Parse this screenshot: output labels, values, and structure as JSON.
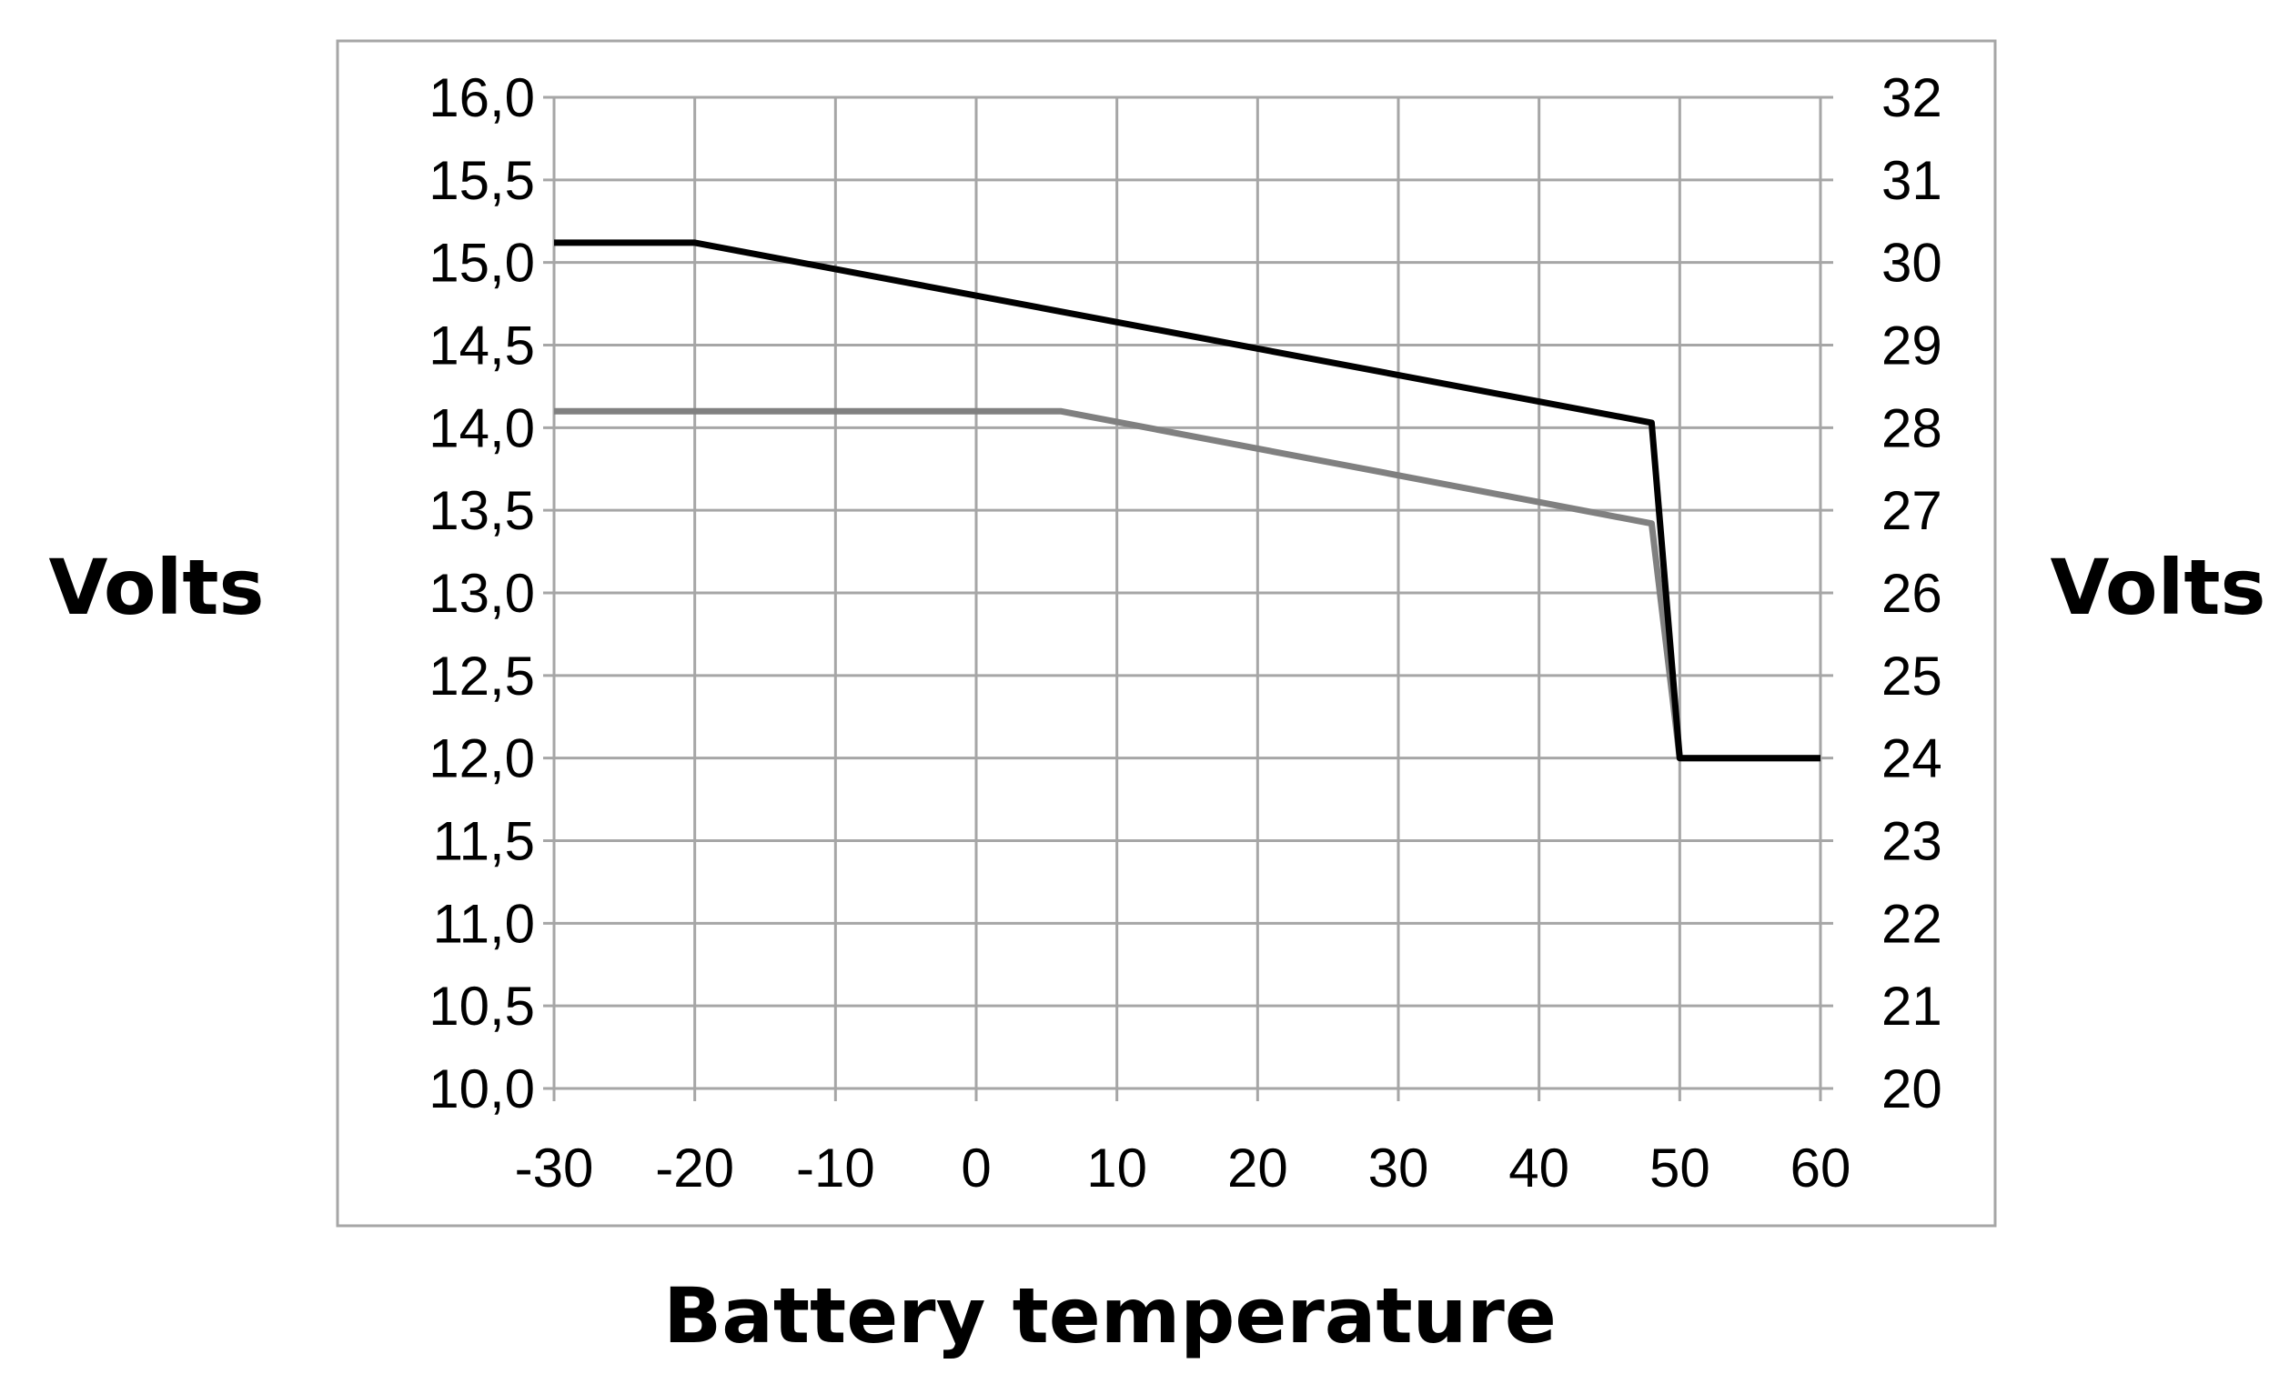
{
  "chart_data": {
    "type": "line",
    "title": "",
    "xlabel": "Battery temperature",
    "ylabel": "Volts",
    "y2label": "Volts",
    "xlim": [
      -30,
      60
    ],
    "ylim": [
      10.0,
      16.0
    ],
    "y2lim": [
      20,
      32
    ],
    "x_ticks": [
      "-30",
      "-20",
      "-10",
      "0",
      "10",
      "20",
      "30",
      "40",
      "50",
      "60"
    ],
    "y_ticks": [
      "10,0",
      "10,5",
      "11,0",
      "11,5",
      "12,0",
      "12,5",
      "13,0",
      "13,5",
      "14,0",
      "14,5",
      "15,0",
      "15,5",
      "16,0"
    ],
    "y2_ticks": [
      "20",
      "21",
      "22",
      "23",
      "24",
      "25",
      "26",
      "27",
      "28",
      "29",
      "30",
      "31",
      "32"
    ],
    "grid": true,
    "legend": "none",
    "series": [
      {
        "color": "#000000",
        "points": [
          [
            -30,
            15.12
          ],
          [
            -20,
            15.12
          ],
          [
            48,
            14.03
          ],
          [
            50,
            12.0
          ],
          [
            60,
            12.0
          ]
        ]
      },
      {
        "color": "#808080",
        "points": [
          [
            -30,
            14.1
          ],
          [
            6,
            14.1
          ],
          [
            48,
            13.42
          ],
          [
            50,
            12.0
          ],
          [
            60,
            12.0
          ]
        ]
      }
    ],
    "colors": {
      "grid": "#a6a6a6",
      "frame": "#a6a6a6"
    }
  }
}
